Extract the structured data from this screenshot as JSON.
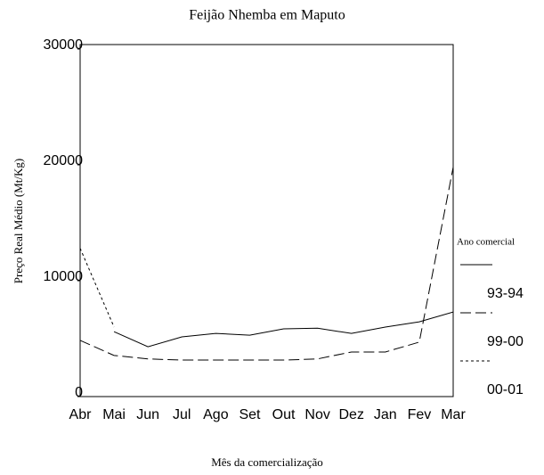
{
  "chart_data": {
    "type": "line",
    "title": "Feijão Nhemba em Maputo",
    "x_label": "Mês da comercialização",
    "y_label": "Preço Real Médio (Mt/Kg)",
    "legend_title": "Ano comercial",
    "legend_position": "right",
    "grid": false,
    "categories": [
      "Abr",
      "Mai",
      "Jun",
      "Jul",
      "Ago",
      "Set",
      "Out",
      "Nov",
      "Dez",
      "Jan",
      "Fev",
      "Mar"
    ],
    "ylim": [
      0,
      30000
    ],
    "yticks": [
      0,
      10000,
      20000,
      30000
    ],
    "series": [
      {
        "name": "93-94",
        "color": "#000000",
        "dash": "solid",
        "values": [
          null,
          5600,
          4300,
          5150,
          5450,
          5300,
          5850,
          5900,
          5450,
          6000,
          6450,
          7300
        ]
      },
      {
        "name": "99-00",
        "color": "#000000",
        "dash": "long",
        "values": [
          4850,
          3550,
          3250,
          3150,
          3150,
          3150,
          3150,
          3250,
          3850,
          3850,
          4700,
          19800
        ]
      },
      {
        "name": "00-01",
        "color": "#000000",
        "dash": "short",
        "values": [
          12800,
          6000,
          null,
          null,
          null,
          null,
          null,
          null,
          null,
          null,
          null,
          null
        ]
      }
    ]
  }
}
